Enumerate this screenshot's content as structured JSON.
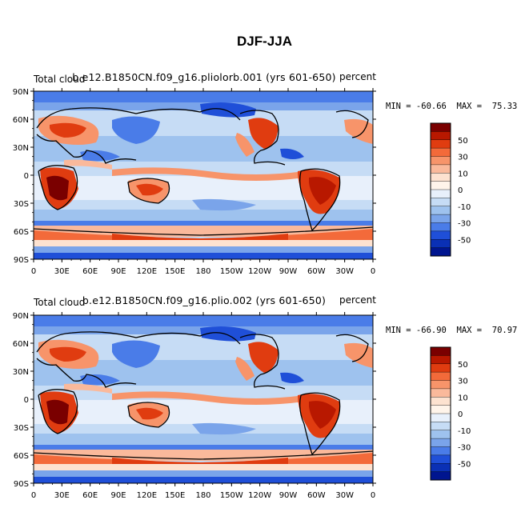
{
  "title": "DJF-JJA",
  "lat_ticks": [
    "90N",
    "60N",
    "30N",
    "0",
    "30S",
    "60S",
    "90S"
  ],
  "lon_ticks": [
    "0",
    "30E",
    "60E",
    "90E",
    "120E",
    "150E",
    "180",
    "150W",
    "120W",
    "90W",
    "60W",
    "30W",
    "0"
  ],
  "colorbar": {
    "labels": [
      "50",
      "30",
      "10",
      "0",
      "-10",
      "-30",
      "-50"
    ],
    "colors": [
      "#7a0000",
      "#b81800",
      "#e03c10",
      "#f36a3a",
      "#f7946a",
      "#fab99b",
      "#fde2d0",
      "#fff4ea",
      "#e8f0fb",
      "#c6dcf5",
      "#9ec2ee",
      "#7aa4ea",
      "#4a7ce8",
      "#1f4fd8",
      "#0a30b5",
      "#00158f"
    ]
  },
  "panels": [
    {
      "case_title": "b.e12.B1850CN.f09_g16.pliolorb.001  (yrs 601-650)",
      "left_label": "Total cloud",
      "units": "percent",
      "min_max": "MIN = -60.66  MAX =  75.33"
    },
    {
      "case_title": "b.e12.B1850CN.f09_g16.plio.002  (yrs 601-650)",
      "left_label": "Total cloud",
      "units": "percent",
      "min_max": "MIN = -66.90  MAX =  70.97"
    }
  ]
}
